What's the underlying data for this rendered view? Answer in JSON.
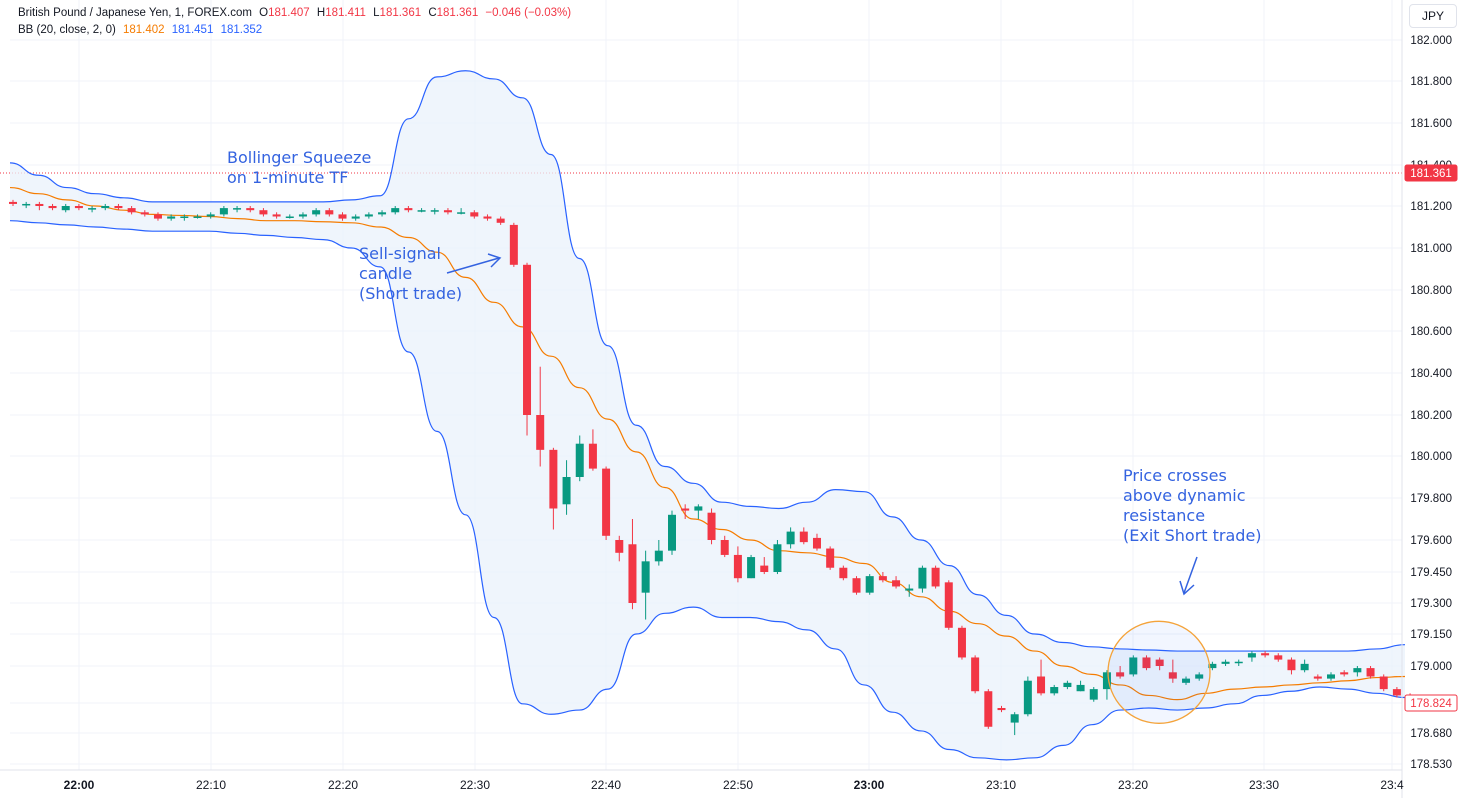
{
  "header": {
    "symbol": "British Pound / Japanese Yen, 1, FOREX.com",
    "ohlc": {
      "o_label": "O",
      "o": "181.407",
      "h_label": "H",
      "h": "181.411",
      "l_label": "L",
      "l": "181.361",
      "c_label": "C",
      "c": "181.361",
      "change": "−0.046 (−0.03%)"
    },
    "bb": {
      "label": "BB (20, close, 2, 0)",
      "basis": "181.402",
      "upper": "181.451",
      "lower": "181.352"
    },
    "currency": "JPY"
  },
  "annotations": {
    "squeeze": "Bollinger Squeeze\non 1-minute TF",
    "sell": "Sell-signal\ncandle\n(Short trade)",
    "exit": "Price crosses\nabove dynamic\nresistance\n(Exit Short trade)"
  },
  "colors": {
    "up": "#089981",
    "down": "#f23645",
    "basis": "#f57c00",
    "band": "#2962ff",
    "fill": "#eaf2fb",
    "annotation": "#3463e0"
  },
  "chart_data": {
    "type": "candlestick",
    "y_ticks": [
      "182.000",
      "181.800",
      "181.600",
      "181.400",
      "181.200",
      "181.000",
      "180.800",
      "180.600",
      "180.400",
      "180.200",
      "180.000",
      "179.800",
      "179.600",
      "179.450",
      "179.300",
      "179.150",
      "179.000",
      "178.824",
      "178.680",
      "178.530"
    ],
    "x_ticks": [
      "22:00",
      "22:10",
      "22:20",
      "22:30",
      "22:40",
      "22:50",
      "23:00",
      "23:10",
      "23:20",
      "23:30",
      "23:4"
    ],
    "price_labels": {
      "last": "181.361",
      "current": "178.824"
    },
    "candles": [
      [
        181.22,
        181.23,
        181.2,
        181.21
      ],
      [
        181.21,
        181.22,
        181.19,
        181.21
      ],
      [
        181.21,
        181.22,
        181.18,
        181.2
      ],
      [
        181.2,
        181.21,
        181.18,
        181.19
      ],
      [
        181.18,
        181.21,
        181.17,
        181.2
      ],
      [
        181.2,
        181.21,
        181.18,
        181.19
      ],
      [
        181.19,
        181.2,
        181.17,
        181.19
      ],
      [
        181.19,
        181.21,
        181.18,
        181.2
      ],
      [
        181.2,
        181.21,
        181.18,
        181.19
      ],
      [
        181.19,
        181.2,
        181.16,
        181.17
      ],
      [
        181.17,
        181.18,
        181.15,
        181.16
      ],
      [
        181.16,
        181.17,
        181.13,
        181.14
      ],
      [
        181.14,
        181.16,
        181.13,
        181.15
      ],
      [
        181.15,
        181.16,
        181.13,
        181.15
      ],
      [
        181.15,
        181.16,
        181.14,
        181.15
      ],
      [
        181.15,
        181.17,
        181.14,
        181.16
      ],
      [
        181.16,
        181.2,
        181.15,
        181.19
      ],
      [
        181.19,
        181.2,
        181.17,
        181.19
      ],
      [
        181.19,
        181.2,
        181.17,
        181.18
      ],
      [
        181.18,
        181.19,
        181.15,
        181.16
      ],
      [
        181.16,
        181.17,
        181.14,
        181.15
      ],
      [
        181.15,
        181.16,
        181.14,
        181.15
      ],
      [
        181.15,
        181.17,
        181.14,
        181.16
      ],
      [
        181.16,
        181.19,
        181.15,
        181.18
      ],
      [
        181.18,
        181.19,
        181.15,
        181.16
      ],
      [
        181.16,
        181.17,
        181.13,
        181.14
      ],
      [
        181.14,
        181.16,
        181.13,
        181.15
      ],
      [
        181.15,
        181.17,
        181.14,
        181.16
      ],
      [
        181.16,
        181.18,
        181.15,
        181.17
      ],
      [
        181.17,
        181.2,
        181.16,
        181.19
      ],
      [
        181.19,
        181.2,
        181.17,
        181.18
      ],
      [
        181.18,
        181.19,
        181.17,
        181.18
      ],
      [
        181.18,
        181.19,
        181.16,
        181.18
      ],
      [
        181.18,
        181.19,
        181.16,
        181.17
      ],
      [
        181.17,
        181.19,
        181.16,
        181.17
      ],
      [
        181.17,
        181.18,
        181.14,
        181.15
      ],
      [
        181.15,
        181.16,
        181.13,
        181.14
      ],
      [
        181.14,
        181.15,
        181.11,
        181.12
      ],
      [
        181.11,
        181.12,
        180.91,
        180.92
      ],
      [
        180.92,
        180.93,
        180.1,
        180.2
      ],
      [
        180.2,
        180.43,
        179.95,
        180.03
      ],
      [
        180.03,
        180.04,
        179.65,
        179.75
      ],
      [
        179.77,
        179.98,
        179.72,
        179.9
      ],
      [
        179.9,
        180.1,
        179.88,
        180.06
      ],
      [
        180.06,
        180.13,
        179.93,
        179.94
      ],
      [
        179.94,
        179.95,
        179.6,
        179.62
      ],
      [
        179.6,
        179.62,
        179.5,
        179.54
      ],
      [
        179.58,
        179.7,
        179.27,
        179.3
      ],
      [
        179.35,
        179.55,
        179.22,
        179.5
      ],
      [
        179.5,
        179.6,
        179.48,
        179.55
      ],
      [
        179.55,
        179.74,
        179.53,
        179.72
      ],
      [
        179.75,
        179.77,
        179.7,
        179.74
      ],
      [
        179.74,
        179.77,
        179.7,
        179.76
      ],
      [
        179.73,
        179.75,
        179.58,
        179.6
      ],
      [
        179.6,
        179.62,
        179.52,
        179.53
      ],
      [
        179.53,
        179.57,
        179.4,
        179.42
      ],
      [
        179.42,
        179.53,
        179.42,
        179.52
      ],
      [
        179.48,
        179.52,
        179.44,
        179.45
      ],
      [
        179.45,
        179.6,
        179.44,
        179.58
      ],
      [
        179.58,
        179.66,
        179.56,
        179.64
      ],
      [
        179.64,
        179.66,
        179.58,
        179.59
      ],
      [
        179.61,
        179.63,
        179.55,
        179.56
      ],
      [
        179.56,
        179.57,
        179.46,
        179.47
      ],
      [
        179.47,
        179.48,
        179.41,
        179.42
      ],
      [
        179.42,
        179.43,
        179.34,
        179.35
      ],
      [
        179.35,
        179.44,
        179.34,
        179.43
      ],
      [
        179.43,
        179.45,
        179.4,
        179.41
      ],
      [
        179.41,
        179.43,
        179.37,
        179.38
      ],
      [
        179.36,
        179.39,
        179.33,
        179.37
      ],
      [
        179.37,
        179.48,
        179.35,
        179.47
      ],
      [
        179.47,
        179.48,
        179.37,
        179.38
      ],
      [
        179.4,
        179.41,
        179.17,
        179.18
      ],
      [
        179.18,
        179.19,
        179.03,
        179.04
      ],
      [
        179.04,
        179.05,
        178.87,
        178.88
      ],
      [
        178.88,
        178.89,
        178.7,
        178.71
      ],
      [
        178.8,
        178.81,
        178.78,
        178.79
      ],
      [
        178.73,
        178.78,
        178.67,
        178.77
      ],
      [
        178.77,
        178.95,
        178.76,
        178.93
      ],
      [
        178.95,
        179.03,
        178.86,
        178.87
      ],
      [
        178.87,
        178.91,
        178.86,
        178.9
      ],
      [
        178.9,
        178.93,
        178.89,
        178.92
      ],
      [
        178.88,
        178.93,
        178.88,
        178.91
      ],
      [
        178.84,
        178.9,
        178.83,
        178.89
      ],
      [
        178.89,
        178.98,
        178.84,
        178.97
      ],
      [
        178.97,
        179.0,
        178.94,
        178.95
      ],
      [
        178.96,
        179.05,
        178.95,
        179.04
      ],
      [
        179.04,
        179.05,
        178.98,
        178.99
      ],
      [
        179.03,
        179.04,
        178.98,
        179.0
      ],
      [
        178.97,
        179.03,
        178.92,
        178.94
      ],
      [
        178.92,
        178.95,
        178.91,
        178.94
      ],
      [
        178.94,
        178.97,
        178.93,
        178.96
      ],
      [
        178.99,
        179.02,
        178.98,
        179.01
      ],
      [
        179.01,
        179.03,
        179.0,
        179.02
      ],
      [
        179.02,
        179.03,
        179.0,
        179.02
      ],
      [
        179.04,
        179.07,
        179.02,
        179.06
      ],
      [
        179.06,
        179.07,
        179.04,
        179.05
      ],
      [
        179.05,
        179.06,
        179.02,
        179.03
      ],
      [
        179.03,
        179.04,
        178.96,
        178.98
      ],
      [
        178.98,
        179.03,
        178.97,
        179.01
      ],
      [
        178.95,
        178.96,
        178.93,
        178.94
      ],
      [
        178.94,
        178.97,
        178.93,
        178.96
      ],
      [
        178.97,
        178.98,
        178.95,
        178.96
      ],
      [
        178.97,
        179.0,
        178.95,
        178.99
      ],
      [
        178.99,
        179.0,
        178.94,
        178.95
      ],
      [
        178.95,
        178.96,
        178.88,
        178.89
      ],
      [
        178.89,
        178.9,
        178.85,
        178.86
      ],
      [
        178.86,
        178.87,
        178.83,
        178.84
      ]
    ],
    "basis": [
      181.29,
      181.26,
      181.23,
      181.2,
      181.18,
      181.16,
      181.155,
      181.15,
      181.14,
      181.13,
      181.13,
      181.125,
      181.12,
      181.1,
      181.05,
      180.98,
      180.86,
      180.74,
      180.62,
      180.48,
      180.33,
      180.18,
      180.02,
      179.85,
      179.7,
      179.65,
      179.6,
      179.55,
      179.54,
      179.52,
      179.49,
      179.4,
      179.33,
      179.26,
      179.2,
      179.14,
      179.07,
      179.0,
      178.96,
      178.91,
      178.86,
      178.84,
      178.87,
      178.89,
      178.9,
      178.91,
      178.92,
      178.93,
      178.945,
      178.95
    ],
    "upper": [
      181.41,
      181.35,
      181.29,
      181.26,
      181.24,
      181.22,
      181.22,
      181.22,
      181.22,
      181.22,
      181.22,
      181.22,
      181.23,
      181.25,
      181.62,
      181.82,
      181.85,
      181.81,
      181.72,
      181.45,
      180.95,
      180.53,
      180.15,
      179.95,
      179.87,
      179.78,
      179.76,
      179.75,
      179.78,
      179.84,
      179.83,
      179.71,
      179.6,
      179.48,
      179.34,
      179.24,
      179.15,
      179.11,
      179.09,
      179.08,
      179.075,
      179.07,
      179.07,
      179.07,
      179.07,
      179.07,
      179.07,
      179.07,
      179.08,
      179.1
    ],
    "lower": [
      181.13,
      181.12,
      181.11,
      181.1,
      181.09,
      181.08,
      181.08,
      181.08,
      181.07,
      181.06,
      181.05,
      181.04,
      181.0,
      180.91,
      180.5,
      180.12,
      179.72,
      179.23,
      178.82,
      178.77,
      178.79,
      178.89,
      179.15,
      179.25,
      179.28,
      179.23,
      179.23,
      179.21,
      179.17,
      179.08,
      178.91,
      178.78,
      178.69,
      178.6,
      178.56,
      178.55,
      178.56,
      178.62,
      178.72,
      178.79,
      178.8,
      178.79,
      178.8,
      178.82,
      178.86,
      178.88,
      178.9,
      178.89,
      178.87,
      178.85
    ],
    "highlight_circle": {
      "x_minutes": 1403,
      "y": 178.97
    }
  }
}
